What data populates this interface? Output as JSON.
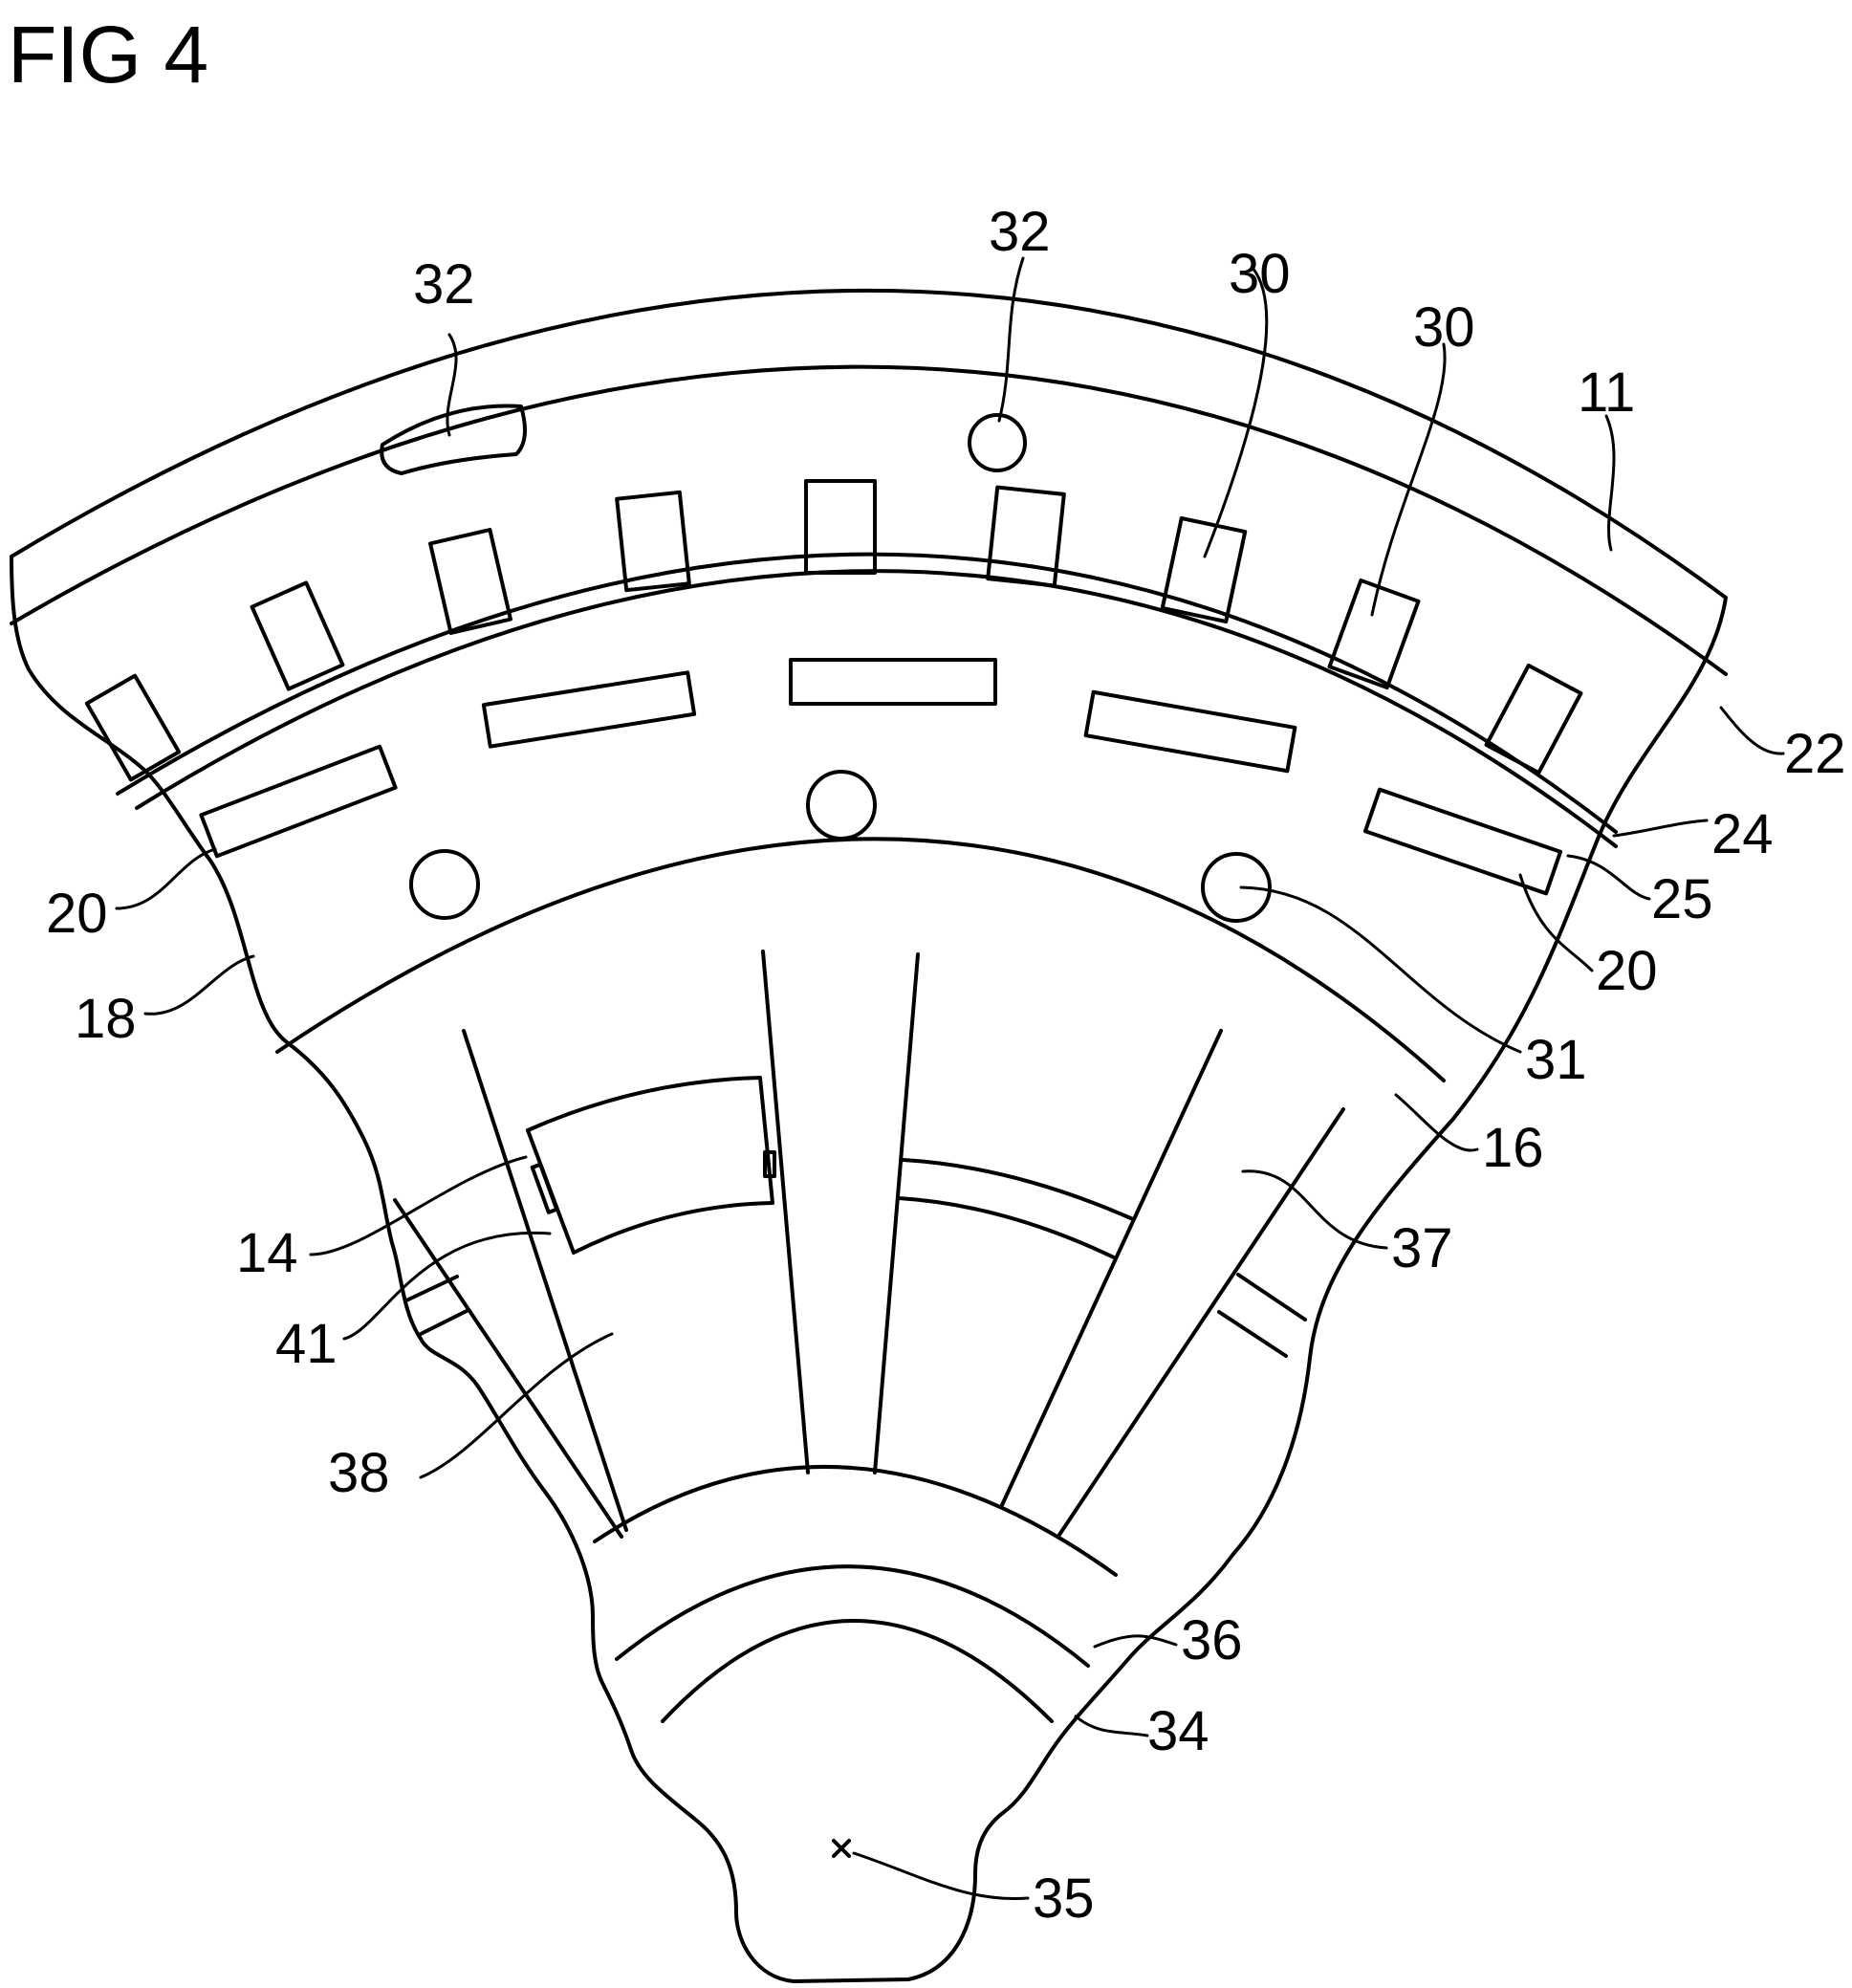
{
  "figure": {
    "title": "FIG 4",
    "labels": {
      "l32a": "32",
      "l32b": "32",
      "l30a": "30",
      "l30b": "30",
      "l11": "11",
      "l22": "22",
      "l24": "24",
      "l25": "25",
      "l20a": "20",
      "l20b": "20",
      "l18": "18",
      "l31": "31",
      "l16": "16",
      "l14": "14",
      "l37": "37",
      "l41": "41",
      "l38": "38",
      "l36": "36",
      "l34": "34",
      "l35": "35"
    }
  }
}
